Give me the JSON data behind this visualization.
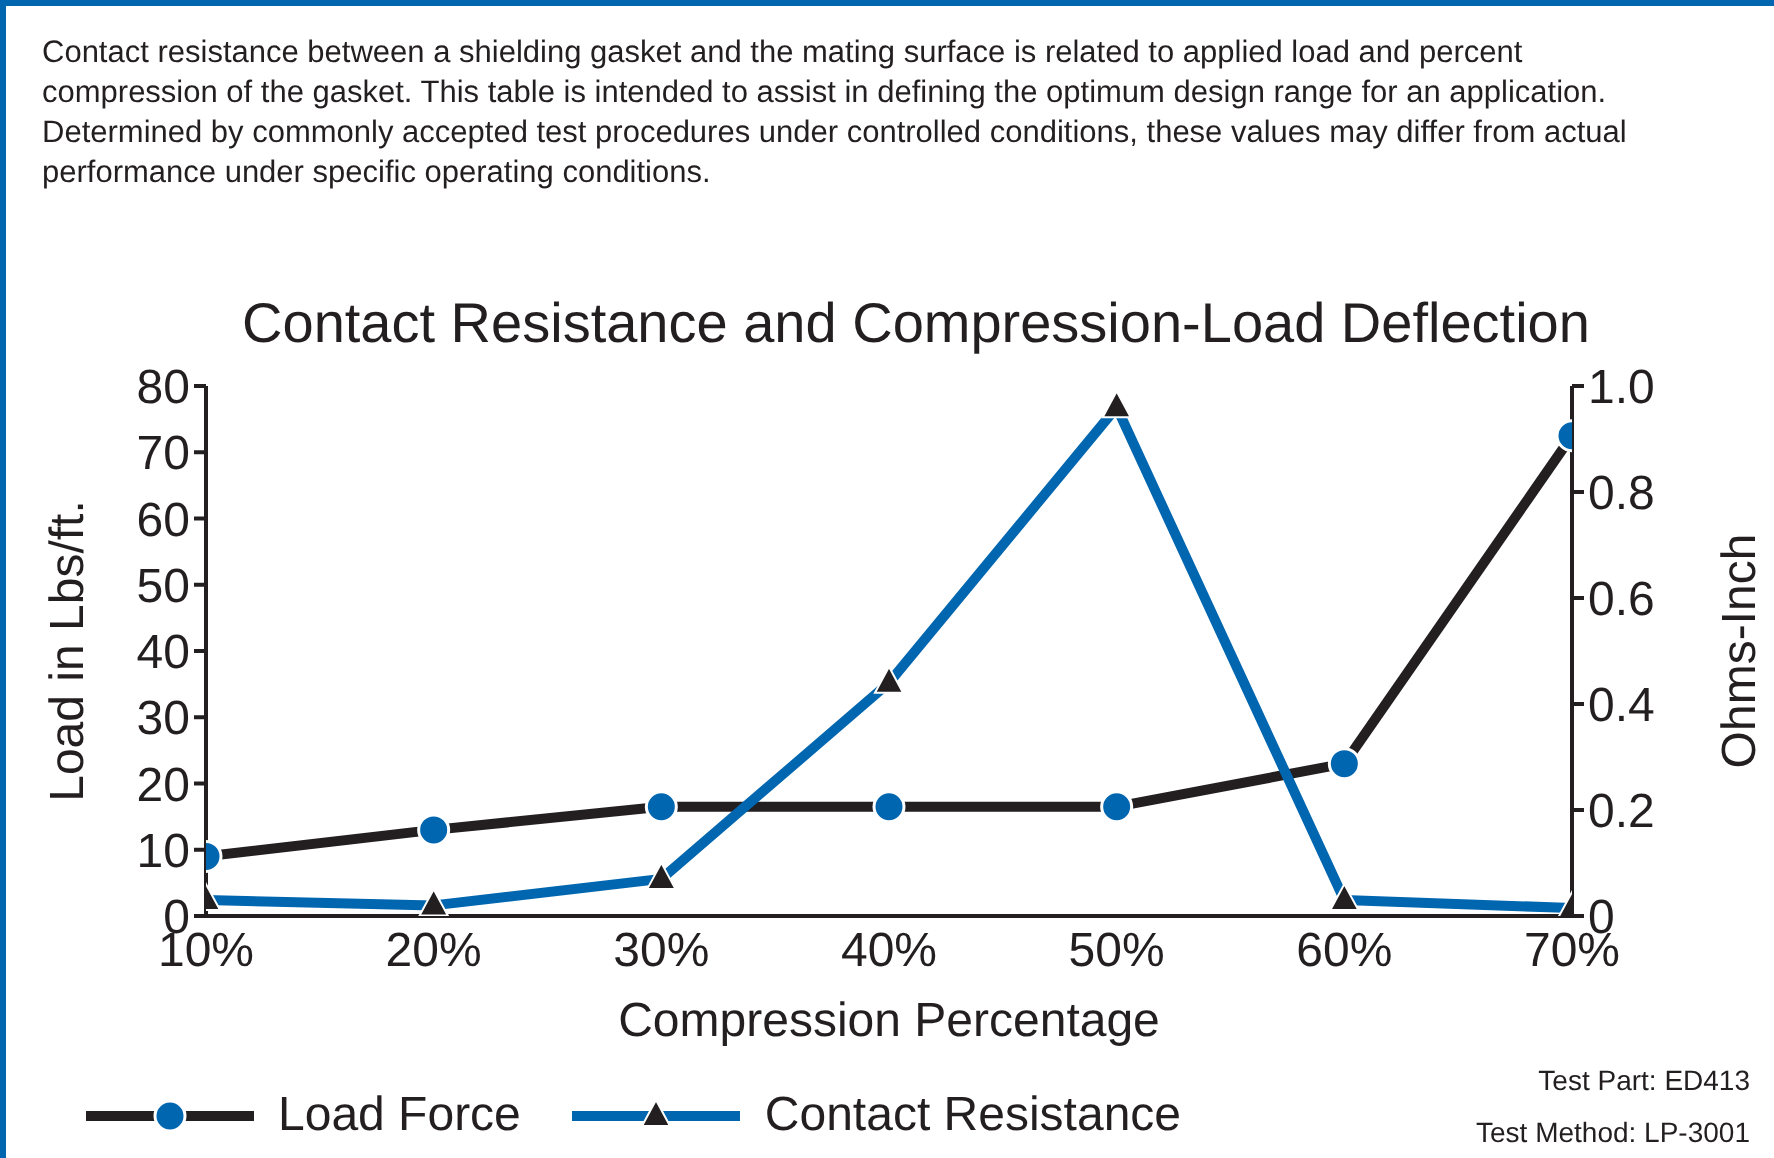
{
  "chart_data": {
    "type": "line",
    "title": "Contact Resistance and Compression-Load Deflection",
    "xlabel": "Compression Percentage",
    "ylabel": "Load in Lbs/ft.",
    "y2label": "Ohms-Inch",
    "annotations": [
      "Contact resistance between a shielding gasket and the mating surface is related to applied load and percent compression of the gasket. This table is intended to assist in defining the optimum design range for an application. Determined by commonly accepted test procedures under controlled conditions, these values may differ from actual performance under specific operating conditions.",
      "Test Part: ED413",
      "Test Method: LP-3001"
    ],
    "categories": [
      "10%",
      "20%",
      "30%",
      "40%",
      "50%",
      "60%",
      "70%"
    ],
    "series": [
      {
        "name": "Load Force",
        "color": "#231f20",
        "marker": "circle",
        "values": [
          9,
          13,
          16.5,
          16.5,
          16.5,
          23,
          72.5
        ]
      },
      {
        "name": "Contact Resistance",
        "color": "#0066b0",
        "marker": "triangle",
        "axis": "y2",
        "values": [
          0.03,
          0.02,
          0.07,
          0.44,
          0.96,
          0.03,
          0.015
        ]
      }
    ],
    "ylim": [
      0,
      80
    ],
    "yticks": [
      0,
      10,
      20,
      30,
      40,
      50,
      60,
      70,
      80
    ],
    "y2lim": [
      0,
      1
    ],
    "y2ticks": [
      0,
      0.2,
      0.4,
      0.6,
      0.8,
      {
        "value": 1,
        "label": "1.0"
      }
    ],
    "grid": false,
    "legend": "bottom left",
    "line_style": "solid"
  }
}
